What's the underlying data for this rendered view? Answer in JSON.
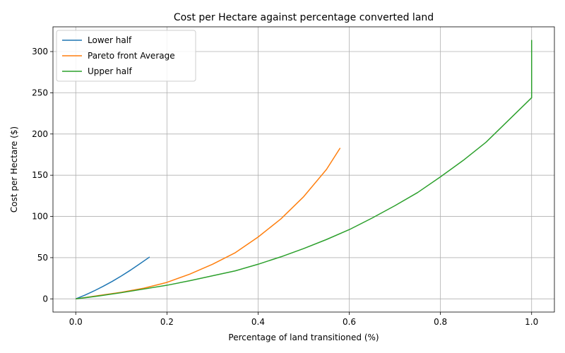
{
  "chart_data": {
    "type": "line",
    "title": "Cost per Hectare against percentage converted land",
    "xlabel": "Percentage of land transitioned (%)",
    "ylabel": "Cost per Hectare ($)",
    "xlim": [
      -0.05,
      1.05
    ],
    "ylim": [
      -16,
      330
    ],
    "xticks": [
      0.0,
      0.2,
      0.4,
      0.6,
      0.8,
      1.0
    ],
    "xtick_labels": [
      "0.0",
      "0.2",
      "0.4",
      "0.6",
      "0.8",
      "1.0"
    ],
    "yticks": [
      0,
      50,
      100,
      150,
      200,
      250,
      300
    ],
    "ytick_labels": [
      "0",
      "50",
      "100",
      "150",
      "200",
      "250",
      "300"
    ],
    "grid": true,
    "legend_position": "top-left",
    "series": [
      {
        "name": "Lower half",
        "color": "#1f77b4",
        "x": [
          0.0,
          0.02,
          0.04,
          0.06,
          0.08,
          0.1,
          0.12,
          0.14,
          0.16,
          0.162
        ],
        "y": [
          0,
          4.5,
          9.6,
          15.2,
          21.2,
          27.8,
          34.8,
          42.3,
          50.0,
          50.8
        ]
      },
      {
        "name": "Pareto front Average",
        "color": "#ff7f0e",
        "x": [
          0.0,
          0.05,
          0.1,
          0.15,
          0.2,
          0.25,
          0.3,
          0.35,
          0.4,
          0.45,
          0.5,
          0.55,
          0.58
        ],
        "y": [
          0,
          4,
          8,
          13,
          20,
          30,
          42,
          56,
          75,
          97,
          124,
          157,
          183
        ]
      },
      {
        "name": "Upper half",
        "color": "#2ca02c",
        "x": [
          0.0,
          0.05,
          0.1,
          0.15,
          0.2,
          0.25,
          0.3,
          0.35,
          0.4,
          0.45,
          0.5,
          0.55,
          0.6,
          0.65,
          0.7,
          0.75,
          0.8,
          0.85,
          0.9,
          0.95,
          1.0,
          1.0,
          1.0
        ],
        "y": [
          0,
          3.5,
          7.5,
          12,
          16.5,
          22,
          28,
          34,
          42,
          51,
          61,
          72,
          84,
          98,
          113,
          129,
          148,
          168,
          190,
          217,
          244,
          250,
          314
        ]
      }
    ]
  }
}
